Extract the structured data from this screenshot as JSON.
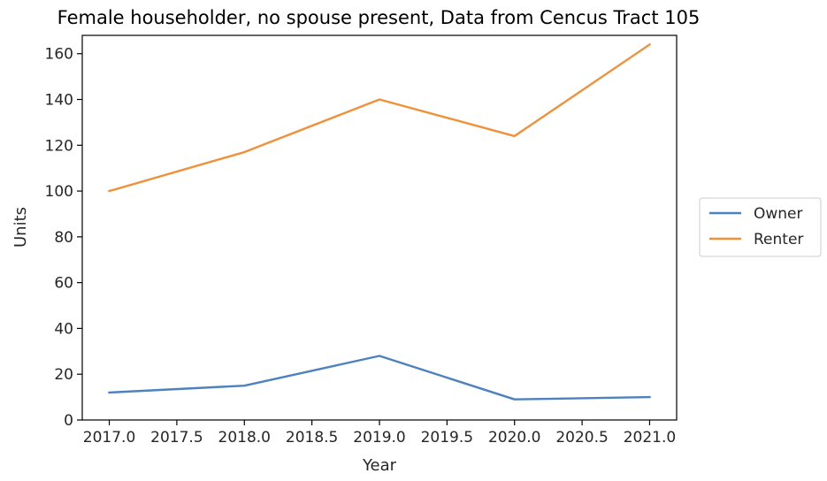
{
  "chart_data": {
    "type": "line",
    "title": "Female householder, no spouse present, Data from Cencus Tract 105",
    "xlabel": "Year",
    "ylabel": "Units",
    "x": [
      2017,
      2018,
      2019,
      2020,
      2021
    ],
    "xlim": [
      2016.8,
      2021.2
    ],
    "ylim": [
      0,
      168
    ],
    "xticks": [
      2017.0,
      2017.5,
      2018.0,
      2018.5,
      2019.0,
      2019.5,
      2020.0,
      2020.5,
      2021.0
    ],
    "xtick_labels": [
      "2017.0",
      "2017.5",
      "2018.0",
      "2018.5",
      "2019.0",
      "2019.5",
      "2020.0",
      "2020.5",
      "2021.0"
    ],
    "yticks": [
      0,
      20,
      40,
      60,
      80,
      100,
      120,
      140,
      160
    ],
    "ytick_labels": [
      "0",
      "20",
      "40",
      "60",
      "80",
      "100",
      "120",
      "140",
      "160"
    ],
    "grid": false,
    "legend_position": "outside-right",
    "series": [
      {
        "name": "Owner",
        "color": "#4c82be",
        "values": [
          12,
          15,
          28,
          9,
          10
        ]
      },
      {
        "name": "Renter",
        "color": "#f0913a",
        "values": [
          100,
          117,
          140,
          124,
          164
        ]
      }
    ]
  }
}
